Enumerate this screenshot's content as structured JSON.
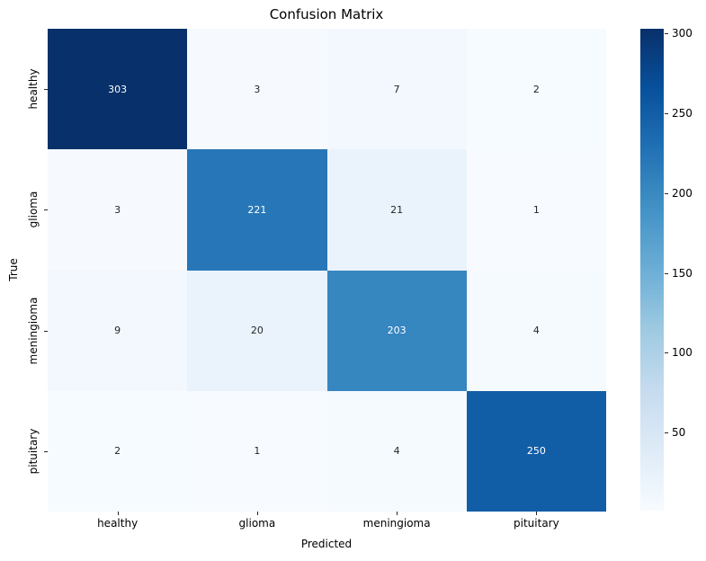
{
  "title": "Confusion Matrix",
  "chart_data": {
    "type": "heatmap",
    "title": "Confusion Matrix",
    "xlabel": "Predicted",
    "ylabel": "True",
    "x_categories": [
      "healthy",
      "glioma",
      "meningioma",
      "pituitary"
    ],
    "y_categories": [
      "healthy",
      "glioma",
      "meningioma",
      "pituitary"
    ],
    "rows": [
      [
        303,
        3,
        7,
        2
      ],
      [
        3,
        221,
        21,
        1
      ],
      [
        9,
        20,
        203,
        4
      ],
      [
        2,
        1,
        4,
        250
      ]
    ],
    "vmin": 1,
    "vmax": 303,
    "colormap": "Blues",
    "colormap_stops": [
      "#f7fbff",
      "#deebf7",
      "#c6dbef",
      "#9ecae1",
      "#6baed6",
      "#4292c6",
      "#2171b5",
      "#08519c",
      "#08306b"
    ],
    "colorbar_ticks": [
      50,
      100,
      150,
      200,
      250,
      300
    ],
    "legend_position": "right-colorbar",
    "grid": false,
    "annot_dark_text_color": "#262626",
    "annot_light_text_color": "#ffffff",
    "tick_color": "#262626"
  }
}
